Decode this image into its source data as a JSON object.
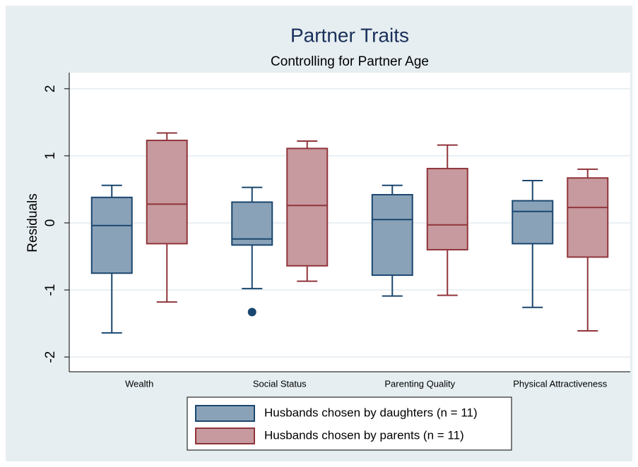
{
  "chart_data": {
    "type": "box",
    "title": "Partner Traits",
    "subtitle": "Controlling for Partner Age",
    "y_label": "Residuals",
    "categories": [
      "Wealth",
      "Social Status",
      "Parenting Quality",
      "Physical Attractiveness"
    ],
    "series": [
      {
        "name": "Husbands chosen by daughters (n = 11)",
        "color": "#1a476f",
        "fill": "#8aa2b8",
        "min": [
          -1.64,
          -0.98,
          -1.09,
          -1.26
        ],
        "q1": [
          -0.75,
          -0.33,
          -0.78,
          -0.31
        ],
        "median": [
          -0.04,
          -0.24,
          0.05,
          0.17
        ],
        "q3": [
          0.38,
          0.31,
          0.42,
          0.33
        ],
        "max": [
          0.56,
          0.53,
          0.56,
          0.63
        ],
        "outliers": [
          [],
          [
            -1.33
          ],
          [],
          []
        ]
      },
      {
        "name": "Husbands chosen by parents (n = 11)",
        "color": "#90353b",
        "fill": "#c69a9e",
        "min": [
          -1.18,
          -0.87,
          -1.08,
          -1.61
        ],
        "q1": [
          -0.31,
          -0.64,
          -0.4,
          -0.51
        ],
        "median": [
          0.28,
          0.26,
          -0.03,
          0.23
        ],
        "q3": [
          1.23,
          1.11,
          0.81,
          0.67
        ],
        "max": [
          1.34,
          1.22,
          1.16,
          0.8
        ],
        "outliers": [
          [],
          [],
          [],
          []
        ]
      }
    ],
    "ylim": [
      -2.22,
      2.24
    ],
    "yticks": [
      -2,
      -1,
      0,
      1,
      2
    ],
    "grid": true
  }
}
